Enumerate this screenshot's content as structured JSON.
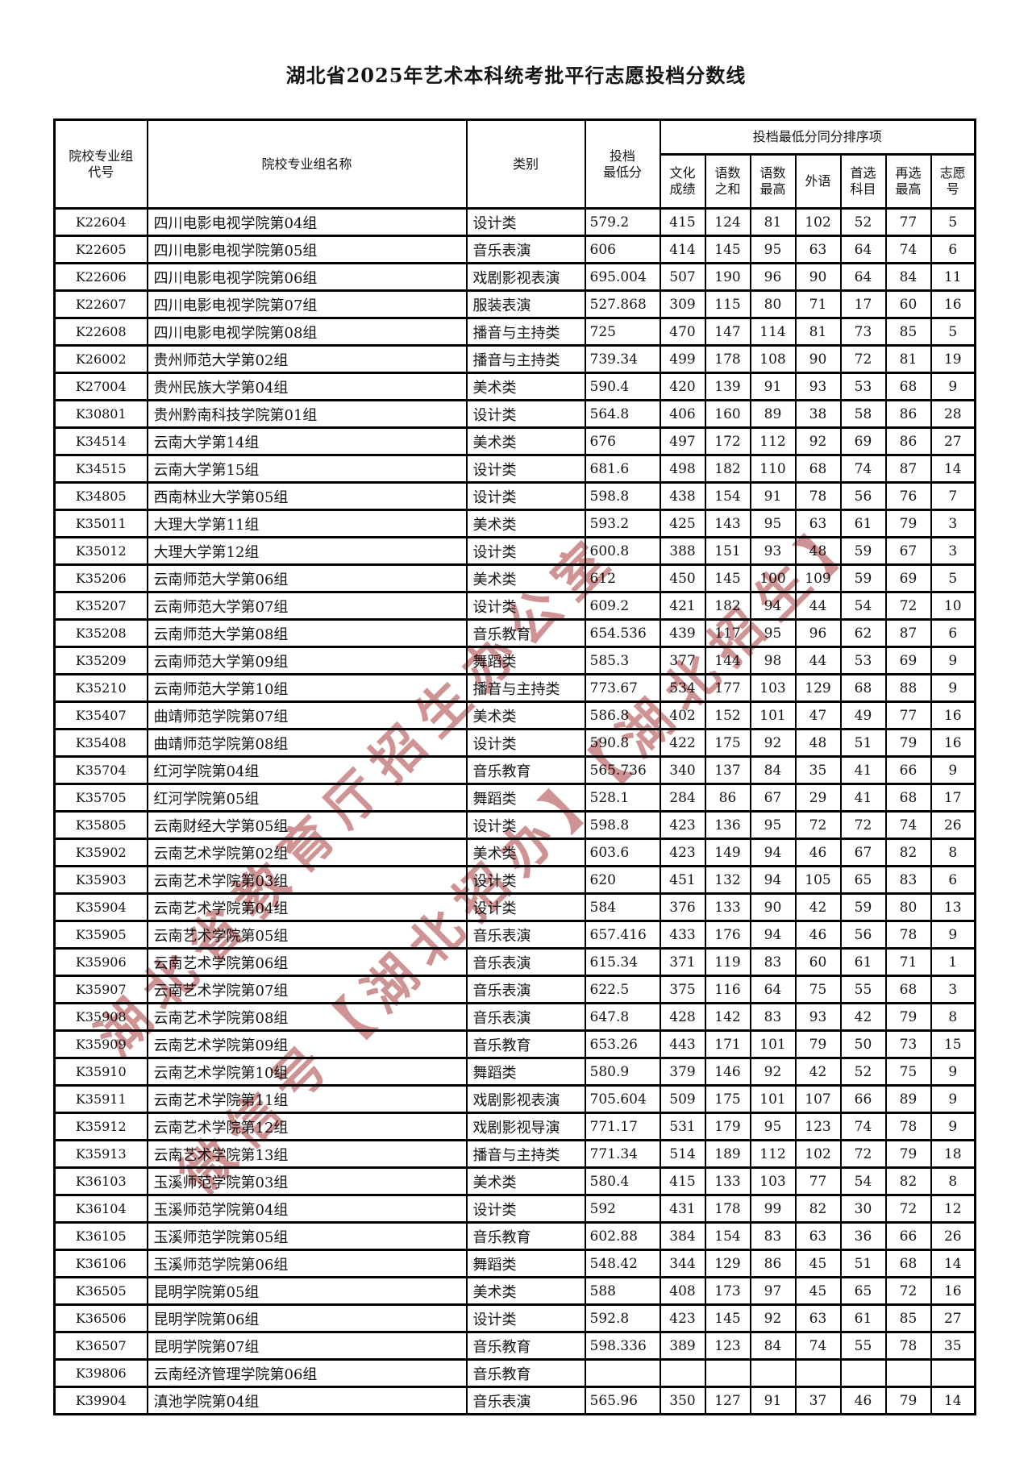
{
  "title": "湖北省2025年艺术本科统考批平行志愿投档分数线",
  "watermark": {
    "line1": "湖北省教育厅招生办公室",
    "line2": "微信号【湖北招办】【湖北招生】",
    "color": "#c47878"
  },
  "table": {
    "headers": {
      "code": "院校专业组\n代号",
      "name": "院校专业组名称",
      "category": "类别",
      "min_score": "投档\n最低分",
      "tiebreak_group": "投档最低分同分排序项",
      "sub": [
        "文化\n成绩",
        "语数\n之和",
        "语数\n最高",
        "外语",
        "首选\n科目",
        "再选\n最高",
        "志愿\n号"
      ]
    },
    "rows": [
      {
        "code": "K22604",
        "name": "四川电影电视学院第04组",
        "category": "设计类",
        "min_score": "579.2",
        "culture": "415",
        "lang_math_sum": "124",
        "lang_math_max": "81",
        "foreign_lang": "102",
        "first_subject": "52",
        "reselect_max": "77",
        "wish_no": "5"
      },
      {
        "code": "K22605",
        "name": "四川电影电视学院第05组",
        "category": "音乐表演",
        "min_score": "606",
        "culture": "414",
        "lang_math_sum": "145",
        "lang_math_max": "95",
        "foreign_lang": "63",
        "first_subject": "64",
        "reselect_max": "74",
        "wish_no": "6"
      },
      {
        "code": "K22606",
        "name": "四川电影电视学院第06组",
        "category": "戏剧影视表演",
        "min_score": "695.004",
        "culture": "507",
        "lang_math_sum": "190",
        "lang_math_max": "96",
        "foreign_lang": "90",
        "first_subject": "64",
        "reselect_max": "84",
        "wish_no": "11"
      },
      {
        "code": "K22607",
        "name": "四川电影电视学院第07组",
        "category": "服装表演",
        "min_score": "527.868",
        "culture": "309",
        "lang_math_sum": "115",
        "lang_math_max": "80",
        "foreign_lang": "71",
        "first_subject": "17",
        "reselect_max": "60",
        "wish_no": "16"
      },
      {
        "code": "K22608",
        "name": "四川电影电视学院第08组",
        "category": "播音与主持类",
        "min_score": "725",
        "culture": "470",
        "lang_math_sum": "147",
        "lang_math_max": "114",
        "foreign_lang": "81",
        "first_subject": "73",
        "reselect_max": "85",
        "wish_no": "5"
      },
      {
        "code": "K26002",
        "name": "贵州师范大学第02组",
        "category": "播音与主持类",
        "min_score": "739.34",
        "culture": "499",
        "lang_math_sum": "178",
        "lang_math_max": "108",
        "foreign_lang": "90",
        "first_subject": "72",
        "reselect_max": "81",
        "wish_no": "19"
      },
      {
        "code": "K27004",
        "name": "贵州民族大学第04组",
        "category": "美术类",
        "min_score": "590.4",
        "culture": "420",
        "lang_math_sum": "139",
        "lang_math_max": "91",
        "foreign_lang": "93",
        "first_subject": "53",
        "reselect_max": "68",
        "wish_no": "9"
      },
      {
        "code": "K30801",
        "name": "贵州黔南科技学院第01组",
        "category": "设计类",
        "min_score": "564.8",
        "culture": "406",
        "lang_math_sum": "160",
        "lang_math_max": "89",
        "foreign_lang": "38",
        "first_subject": "58",
        "reselect_max": "86",
        "wish_no": "28"
      },
      {
        "code": "K34514",
        "name": "云南大学第14组",
        "category": "美术类",
        "min_score": "676",
        "culture": "497",
        "lang_math_sum": "172",
        "lang_math_max": "112",
        "foreign_lang": "92",
        "first_subject": "69",
        "reselect_max": "86",
        "wish_no": "27"
      },
      {
        "code": "K34515",
        "name": "云南大学第15组",
        "category": "设计类",
        "min_score": "681.6",
        "culture": "498",
        "lang_math_sum": "182",
        "lang_math_max": "110",
        "foreign_lang": "68",
        "first_subject": "74",
        "reselect_max": "87",
        "wish_no": "14"
      },
      {
        "code": "K34805",
        "name": "西南林业大学第05组",
        "category": "设计类",
        "min_score": "598.8",
        "culture": "438",
        "lang_math_sum": "154",
        "lang_math_max": "91",
        "foreign_lang": "78",
        "first_subject": "56",
        "reselect_max": "76",
        "wish_no": "7"
      },
      {
        "code": "K35011",
        "name": "大理大学第11组",
        "category": "美术类",
        "min_score": "593.2",
        "culture": "425",
        "lang_math_sum": "143",
        "lang_math_max": "95",
        "foreign_lang": "63",
        "first_subject": "61",
        "reselect_max": "79",
        "wish_no": "3"
      },
      {
        "code": "K35012",
        "name": "大理大学第12组",
        "category": "设计类",
        "min_score": "600.8",
        "culture": "388",
        "lang_math_sum": "151",
        "lang_math_max": "93",
        "foreign_lang": "48",
        "first_subject": "59",
        "reselect_max": "67",
        "wish_no": "3"
      },
      {
        "code": "K35206",
        "name": "云南师范大学第06组",
        "category": "美术类",
        "min_score": "612",
        "culture": "450",
        "lang_math_sum": "145",
        "lang_math_max": "100",
        "foreign_lang": "109",
        "first_subject": "59",
        "reselect_max": "69",
        "wish_no": "5"
      },
      {
        "code": "K35207",
        "name": "云南师范大学第07组",
        "category": "设计类",
        "min_score": "609.2",
        "culture": "421",
        "lang_math_sum": "182",
        "lang_math_max": "94",
        "foreign_lang": "44",
        "first_subject": "54",
        "reselect_max": "72",
        "wish_no": "10"
      },
      {
        "code": "K35208",
        "name": "云南师范大学第08组",
        "category": "音乐教育",
        "min_score": "654.536",
        "culture": "439",
        "lang_math_sum": "117",
        "lang_math_max": "95",
        "foreign_lang": "96",
        "first_subject": "62",
        "reselect_max": "87",
        "wish_no": "6"
      },
      {
        "code": "K35209",
        "name": "云南师范大学第09组",
        "category": "舞蹈类",
        "min_score": "585.3",
        "culture": "377",
        "lang_math_sum": "144",
        "lang_math_max": "98",
        "foreign_lang": "44",
        "first_subject": "53",
        "reselect_max": "69",
        "wish_no": "9"
      },
      {
        "code": "K35210",
        "name": "云南师范大学第10组",
        "category": "播音与主持类",
        "min_score": "773.67",
        "culture": "534",
        "lang_math_sum": "177",
        "lang_math_max": "103",
        "foreign_lang": "129",
        "first_subject": "68",
        "reselect_max": "88",
        "wish_no": "9"
      },
      {
        "code": "K35407",
        "name": "曲靖师范学院第07组",
        "category": "美术类",
        "min_score": "586.8",
        "culture": "402",
        "lang_math_sum": "152",
        "lang_math_max": "101",
        "foreign_lang": "47",
        "first_subject": "49",
        "reselect_max": "77",
        "wish_no": "16"
      },
      {
        "code": "K35408",
        "name": "曲靖师范学院第08组",
        "category": "设计类",
        "min_score": "590.8",
        "culture": "422",
        "lang_math_sum": "175",
        "lang_math_max": "92",
        "foreign_lang": "48",
        "first_subject": "51",
        "reselect_max": "79",
        "wish_no": "16"
      },
      {
        "code": "K35704",
        "name": "红河学院第04组",
        "category": "音乐教育",
        "min_score": "565.736",
        "culture": "340",
        "lang_math_sum": "137",
        "lang_math_max": "84",
        "foreign_lang": "35",
        "first_subject": "41",
        "reselect_max": "66",
        "wish_no": "9"
      },
      {
        "code": "K35705",
        "name": "红河学院第05组",
        "category": "舞蹈类",
        "min_score": "528.1",
        "culture": "284",
        "lang_math_sum": "86",
        "lang_math_max": "67",
        "foreign_lang": "29",
        "first_subject": "41",
        "reselect_max": "68",
        "wish_no": "17"
      },
      {
        "code": "K35805",
        "name": "云南财经大学第05组",
        "category": "设计类",
        "min_score": "598.8",
        "culture": "423",
        "lang_math_sum": "136",
        "lang_math_max": "95",
        "foreign_lang": "72",
        "first_subject": "72",
        "reselect_max": "74",
        "wish_no": "26"
      },
      {
        "code": "K35902",
        "name": "云南艺术学院第02组",
        "category": "美术类",
        "min_score": "603.6",
        "culture": "423",
        "lang_math_sum": "149",
        "lang_math_max": "94",
        "foreign_lang": "46",
        "first_subject": "67",
        "reselect_max": "82",
        "wish_no": "8"
      },
      {
        "code": "K35903",
        "name": "云南艺术学院第03组",
        "category": "设计类",
        "min_score": "620",
        "culture": "451",
        "lang_math_sum": "132",
        "lang_math_max": "94",
        "foreign_lang": "105",
        "first_subject": "65",
        "reselect_max": "83",
        "wish_no": "6"
      },
      {
        "code": "K35904",
        "name": "云南艺术学院第04组",
        "category": "设计类",
        "min_score": "584",
        "culture": "376",
        "lang_math_sum": "133",
        "lang_math_max": "90",
        "foreign_lang": "42",
        "first_subject": "59",
        "reselect_max": "80",
        "wish_no": "13"
      },
      {
        "code": "K35905",
        "name": "云南艺术学院第05组",
        "category": "音乐表演",
        "min_score": "657.416",
        "culture": "433",
        "lang_math_sum": "176",
        "lang_math_max": "94",
        "foreign_lang": "46",
        "first_subject": "56",
        "reselect_max": "78",
        "wish_no": "9"
      },
      {
        "code": "K35906",
        "name": "云南艺术学院第06组",
        "category": "音乐表演",
        "min_score": "615.34",
        "culture": "371",
        "lang_math_sum": "119",
        "lang_math_max": "83",
        "foreign_lang": "60",
        "first_subject": "61",
        "reselect_max": "71",
        "wish_no": "1"
      },
      {
        "code": "K35907",
        "name": "云南艺术学院第07组",
        "category": "音乐表演",
        "min_score": "622.5",
        "culture": "375",
        "lang_math_sum": "116",
        "lang_math_max": "64",
        "foreign_lang": "75",
        "first_subject": "55",
        "reselect_max": "68",
        "wish_no": "3"
      },
      {
        "code": "K35908",
        "name": "云南艺术学院第08组",
        "category": "音乐表演",
        "min_score": "647.8",
        "culture": "428",
        "lang_math_sum": "142",
        "lang_math_max": "83",
        "foreign_lang": "93",
        "first_subject": "42",
        "reselect_max": "79",
        "wish_no": "8"
      },
      {
        "code": "K35909",
        "name": "云南艺术学院第09组",
        "category": "音乐教育",
        "min_score": "653.26",
        "culture": "443",
        "lang_math_sum": "171",
        "lang_math_max": "101",
        "foreign_lang": "79",
        "first_subject": "50",
        "reselect_max": "73",
        "wish_no": "15"
      },
      {
        "code": "K35910",
        "name": "云南艺术学院第10组",
        "category": "舞蹈类",
        "min_score": "580.9",
        "culture": "379",
        "lang_math_sum": "146",
        "lang_math_max": "92",
        "foreign_lang": "42",
        "first_subject": "52",
        "reselect_max": "75",
        "wish_no": "9"
      },
      {
        "code": "K35911",
        "name": "云南艺术学院第11组",
        "category": "戏剧影视表演",
        "min_score": "705.604",
        "culture": "509",
        "lang_math_sum": "175",
        "lang_math_max": "101",
        "foreign_lang": "107",
        "first_subject": "66",
        "reselect_max": "89",
        "wish_no": "9"
      },
      {
        "code": "K35912",
        "name": "云南艺术学院第12组",
        "category": "戏剧影视导演",
        "min_score": "771.17",
        "culture": "531",
        "lang_math_sum": "179",
        "lang_math_max": "95",
        "foreign_lang": "123",
        "first_subject": "74",
        "reselect_max": "78",
        "wish_no": "9"
      },
      {
        "code": "K35913",
        "name": "云南艺术学院第13组",
        "category": "播音与主持类",
        "min_score": "771.34",
        "culture": "514",
        "lang_math_sum": "189",
        "lang_math_max": "112",
        "foreign_lang": "102",
        "first_subject": "72",
        "reselect_max": "79",
        "wish_no": "18"
      },
      {
        "code": "K36103",
        "name": "玉溪师范学院第03组",
        "category": "美术类",
        "min_score": "580.4",
        "culture": "415",
        "lang_math_sum": "133",
        "lang_math_max": "103",
        "foreign_lang": "77",
        "first_subject": "54",
        "reselect_max": "82",
        "wish_no": "8"
      },
      {
        "code": "K36104",
        "name": "玉溪师范学院第04组",
        "category": "设计类",
        "min_score": "592",
        "culture": "431",
        "lang_math_sum": "178",
        "lang_math_max": "99",
        "foreign_lang": "82",
        "first_subject": "30",
        "reselect_max": "72",
        "wish_no": "12"
      },
      {
        "code": "K36105",
        "name": "玉溪师范学院第05组",
        "category": "音乐教育",
        "min_score": "602.88",
        "culture": "384",
        "lang_math_sum": "154",
        "lang_math_max": "83",
        "foreign_lang": "63",
        "first_subject": "36",
        "reselect_max": "66",
        "wish_no": "26"
      },
      {
        "code": "K36106",
        "name": "玉溪师范学院第06组",
        "category": "舞蹈类",
        "min_score": "548.42",
        "culture": "344",
        "lang_math_sum": "129",
        "lang_math_max": "86",
        "foreign_lang": "45",
        "first_subject": "51",
        "reselect_max": "68",
        "wish_no": "14"
      },
      {
        "code": "K36505",
        "name": "昆明学院第05组",
        "category": "美术类",
        "min_score": "588",
        "culture": "408",
        "lang_math_sum": "173",
        "lang_math_max": "97",
        "foreign_lang": "45",
        "first_subject": "65",
        "reselect_max": "72",
        "wish_no": "16"
      },
      {
        "code": "K36506",
        "name": "昆明学院第06组",
        "category": "设计类",
        "min_score": "592.8",
        "culture": "423",
        "lang_math_sum": "145",
        "lang_math_max": "92",
        "foreign_lang": "63",
        "first_subject": "61",
        "reselect_max": "85",
        "wish_no": "27"
      },
      {
        "code": "K36507",
        "name": "昆明学院第07组",
        "category": "音乐教育",
        "min_score": "598.336",
        "culture": "389",
        "lang_math_sum": "123",
        "lang_math_max": "84",
        "foreign_lang": "74",
        "first_subject": "55",
        "reselect_max": "78",
        "wish_no": "35"
      },
      {
        "code": "K39806",
        "name": "云南经济管理学院第06组",
        "category": "音乐教育",
        "min_score": "",
        "culture": "",
        "lang_math_sum": "",
        "lang_math_max": "",
        "foreign_lang": "",
        "first_subject": "",
        "reselect_max": "",
        "wish_no": ""
      },
      {
        "code": "K39904",
        "name": "滇池学院第04组",
        "category": "音乐表演",
        "min_score": "565.96",
        "culture": "350",
        "lang_math_sum": "127",
        "lang_math_max": "91",
        "foreign_lang": "37",
        "first_subject": "46",
        "reselect_max": "79",
        "wish_no": "14"
      }
    ]
  }
}
